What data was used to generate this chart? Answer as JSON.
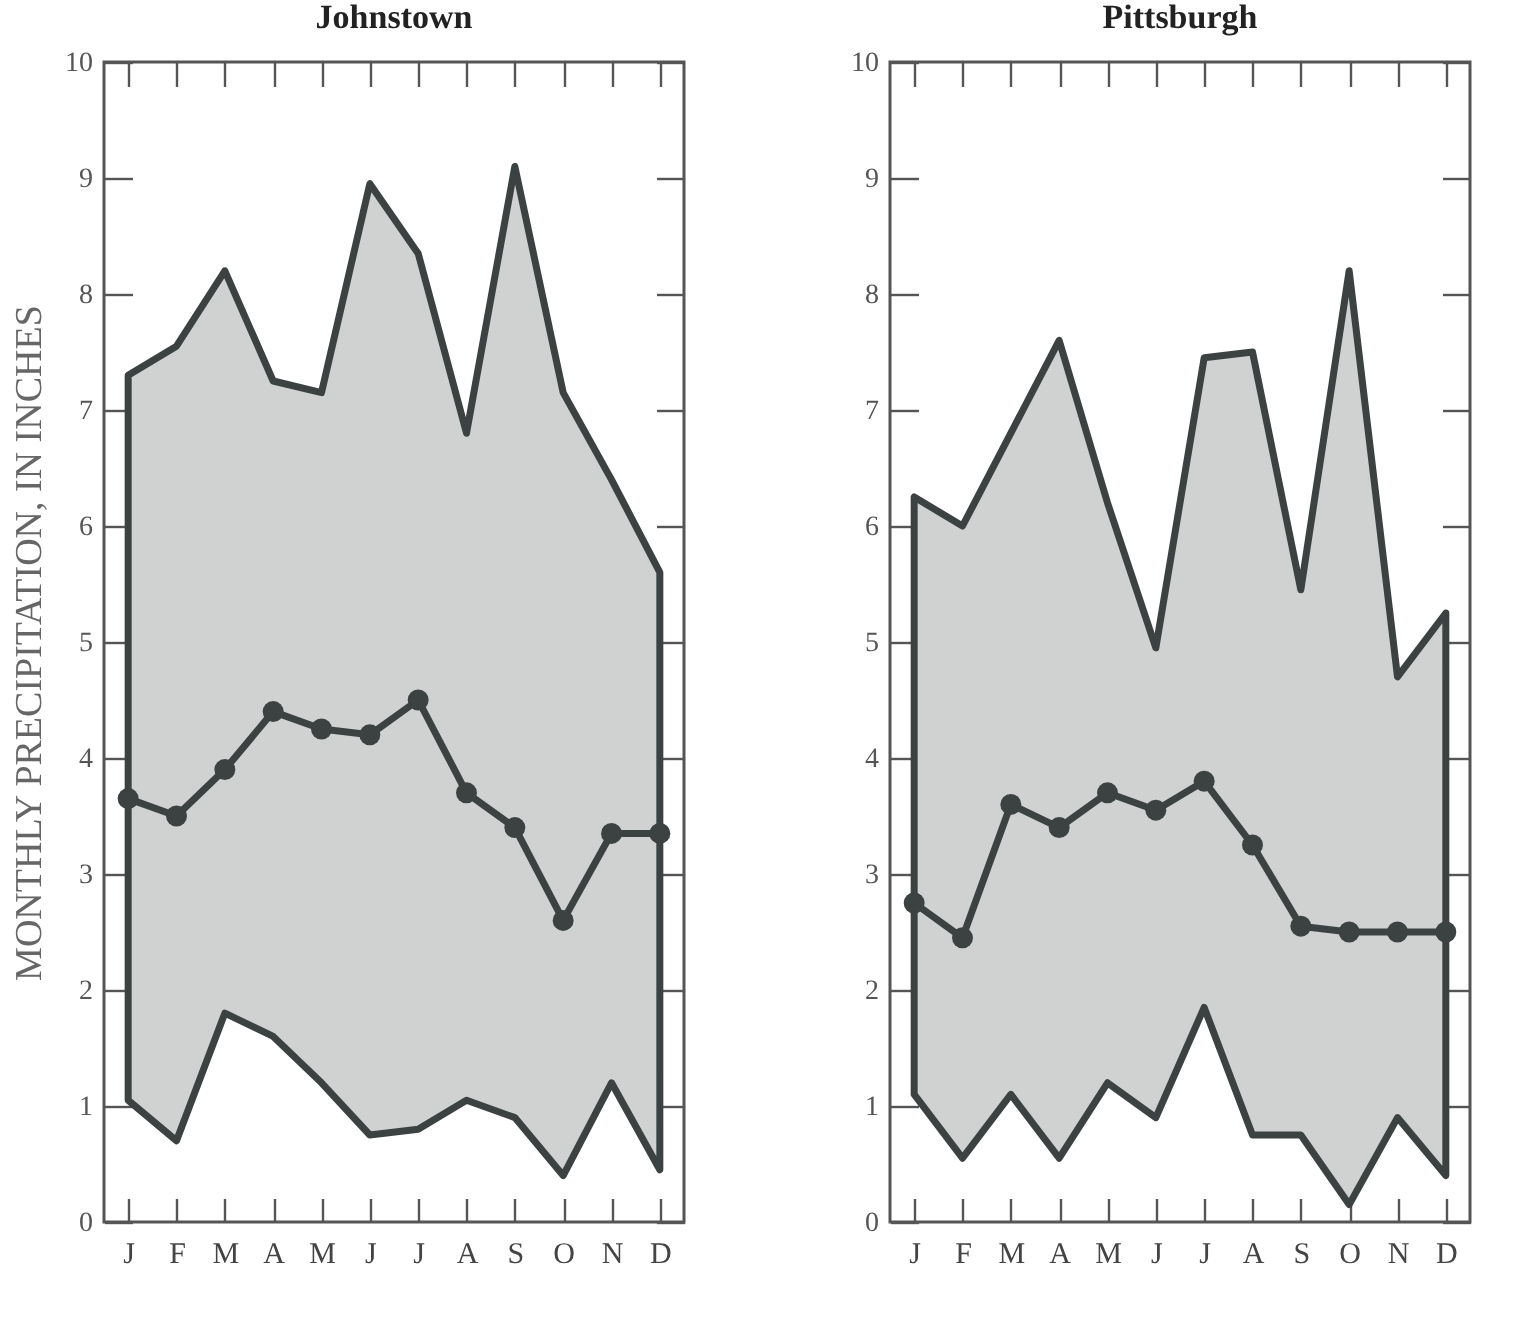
{
  "chart_data": [
    {
      "type": "line",
      "title": "Johnstown",
      "ylabel": "MONTHLY PRECIPITATION, IN INCHES",
      "categories": [
        "J",
        "F",
        "M",
        "A",
        "M",
        "J",
        "J",
        "A",
        "S",
        "O",
        "N",
        "D"
      ],
      "series": [
        {
          "color": "#3c4242",
          "values": [
            3.65,
            3.5,
            3.9,
            4.4,
            4.25,
            4.2,
            4.5,
            3.7,
            3.4,
            2.6,
            3.35,
            3.35
          ],
          "lower": [
            1.05,
            0.7,
            1.8,
            1.6,
            1.2,
            0.75,
            0.8,
            1.05,
            0.9,
            0.4,
            1.2,
            0.45
          ],
          "upper": [
            7.3,
            7.55,
            8.2,
            7.25,
            7.15,
            8.95,
            8.35,
            6.8,
            9.1,
            7.15,
            6.4,
            5.6
          ]
        }
      ],
      "ylim": [
        0,
        10
      ],
      "yticks": [
        0,
        1,
        2,
        3,
        4,
        5,
        6,
        7,
        8,
        9,
        10
      ],
      "grid": false,
      "marker": "circle"
    },
    {
      "type": "line",
      "title": "Pittsburgh",
      "categories": [
        "J",
        "F",
        "M",
        "A",
        "M",
        "J",
        "J",
        "A",
        "S",
        "O",
        "N",
        "D"
      ],
      "series": [
        {
          "color": "#3c4242",
          "values": [
            2.75,
            2.45,
            3.6,
            3.4,
            3.7,
            3.55,
            3.8,
            3.25,
            2.55,
            2.5,
            2.5,
            2.5
          ],
          "lower": [
            1.1,
            0.55,
            1.1,
            0.55,
            1.2,
            0.9,
            1.85,
            0.75,
            0.75,
            0.15,
            0.9,
            0.4
          ],
          "upper": [
            6.25,
            6.0,
            6.8,
            7.6,
            6.2,
            4.95,
            7.45,
            7.5,
            5.45,
            8.2,
            4.7,
            5.25
          ]
        }
      ],
      "ylim": [
        0,
        10
      ],
      "yticks": [
        0,
        1,
        2,
        3,
        4,
        5,
        6,
        7,
        8,
        9,
        10
      ],
      "grid": false,
      "marker": "circle"
    }
  ]
}
